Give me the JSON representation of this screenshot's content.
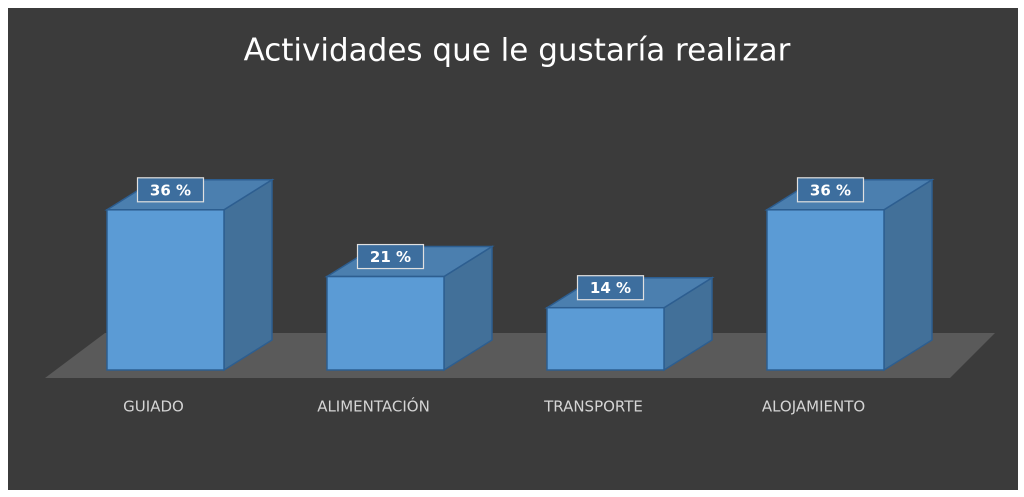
{
  "chart_data": {
    "type": "bar3d",
    "title": "Actividades que le gustaría realizar",
    "categories": [
      "GUIADO",
      "ALIMENTACIÓN",
      "TRANSPORTE",
      "ALOJAMIENTO"
    ],
    "values": [
      36,
      21,
      14,
      36
    ],
    "value_labels": [
      "36 %",
      "21 %",
      "14 %",
      "36 %"
    ],
    "color": "#5b9bd5"
  }
}
